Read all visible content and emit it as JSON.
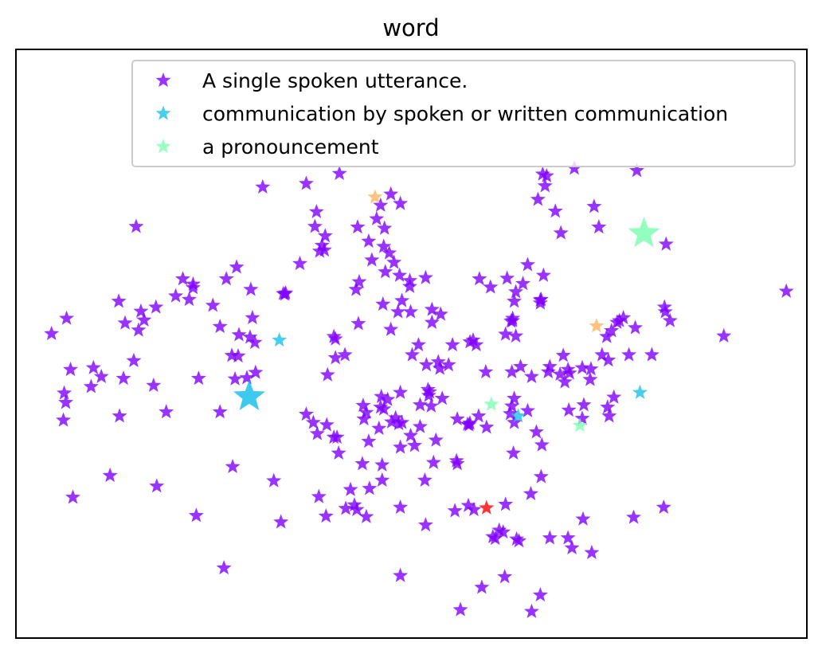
{
  "chart_data": {
    "type": "scatter",
    "title": "word",
    "xlabel": "",
    "ylabel": "",
    "xlim": [
      0,
      100
    ],
    "ylim": [
      0,
      100
    ],
    "axis_ticks": "none",
    "grid": false,
    "marker": "star",
    "legend": {
      "placement": "top-right",
      "entries": [
        {
          "label": "A single spoken utterance.",
          "color": "#8000ff"
        },
        {
          "label": "communication by spoken or written communication",
          "color": "#1cc0eb"
        },
        {
          "label": "a pronouncement",
          "color": "#80ffb3"
        }
      ]
    },
    "series": [
      {
        "name": "A single spoken utterance.",
        "color": "#8000ff",
        "points": [
          [
            31.2,
            76.6
          ],
          [
            36.7,
            77.2
          ],
          [
            15.2,
            69.9
          ],
          [
            27.9,
            63.0
          ],
          [
            38.0,
            72.4
          ],
          [
            37.8,
            69.9
          ],
          [
            34.0,
            58.4
          ],
          [
            33.8,
            58.5
          ],
          [
            40.9,
            78.9
          ],
          [
            43.2,
            69.8
          ],
          [
            46.6,
            69.6
          ],
          [
            45.0,
            64.2
          ],
          [
            43.4,
            60.5
          ],
          [
            45.6,
            71.2
          ],
          [
            44.6,
            67.4
          ],
          [
            48.5,
            61.6
          ],
          [
            46.7,
            62.2
          ],
          [
            48.8,
            57.3
          ],
          [
            51.8,
            61.2
          ],
          [
            49.8,
            59.7
          ],
          [
            46.5,
            66.5
          ],
          [
            39.0,
            65.9
          ],
          [
            38.7,
            66.7
          ],
          [
            38.4,
            65.7
          ],
          [
            39.1,
            68.3
          ],
          [
            47.8,
            63.8
          ],
          [
            47.2,
            65.4
          ],
          [
            43.0,
            59.2
          ],
          [
            47.4,
            75.4
          ],
          [
            46.1,
            73.5
          ],
          [
            48.6,
            73.8
          ],
          [
            49.8,
            60.7
          ],
          [
            52.6,
            55.8
          ],
          [
            53.7,
            55.0
          ],
          [
            55.2,
            49.8
          ],
          [
            57.8,
            50.6
          ],
          [
            58.2,
            49.8
          ],
          [
            57.4,
            50.3
          ],
          [
            57.1,
            36.3
          ],
          [
            55.8,
            37.2
          ],
          [
            58.5,
            37.7
          ],
          [
            60.0,
            59.6
          ],
          [
            58.6,
            61.0
          ],
          [
            62.6,
            53.8
          ],
          [
            63.8,
            46.1
          ],
          [
            62.7,
            45.2
          ],
          [
            65.2,
            44.4
          ],
          [
            69.4,
            43.5
          ],
          [
            74.1,
            48.1
          ],
          [
            78.3,
            52.7
          ],
          [
            68.8,
            44.8
          ],
          [
            70.0,
            45.0
          ],
          [
            69.8,
            45.6
          ],
          [
            71.6,
            45.9
          ],
          [
            67.5,
            46.1
          ],
          [
            67.3,
            45.2
          ],
          [
            69.2,
            48.0
          ],
          [
            74.7,
            51.2
          ],
          [
            76.0,
            53.6
          ],
          [
            66.7,
            61.6
          ],
          [
            66.3,
            57.4
          ],
          [
            66.3,
            56.9
          ],
          [
            66.4,
            57.5
          ],
          [
            64.1,
            60.2
          ],
          [
            63.2,
            51.3
          ],
          [
            62.8,
            54.3
          ],
          [
            63.2,
            58.8
          ],
          [
            64.7,
            63.4
          ],
          [
            62.1,
            61.1
          ],
          [
            63.0,
            57.2
          ],
          [
            62.8,
            53.9
          ],
          [
            66.6,
            78.8
          ],
          [
            67.1,
            78.5
          ],
          [
            66.9,
            76.8
          ],
          [
            66.0,
            74.5
          ],
          [
            70.6,
            79.8
          ],
          [
            73.1,
            73.3
          ],
          [
            73.7,
            69.8
          ],
          [
            78.5,
            79.4
          ],
          [
            82.2,
            66.9
          ],
          [
            82.0,
            56.2
          ],
          [
            82.1,
            55.4
          ],
          [
            82.7,
            53.9
          ],
          [
            80.4,
            48.1
          ],
          [
            89.5,
            51.3
          ],
          [
            97.4,
            58.9
          ],
          [
            77.5,
            48.1
          ],
          [
            76.8,
            54.4
          ],
          [
            76.3,
            53.9
          ],
          [
            75.3,
            52.2
          ],
          [
            74.9,
            47.2
          ],
          [
            72.7,
            45.7
          ],
          [
            68.2,
            72.5
          ],
          [
            68.9,
            68.8
          ],
          [
            72.6,
            43.9
          ],
          [
            75.0,
            37.7
          ],
          [
            74.8,
            39.2
          ],
          [
            75.6,
            40.9
          ],
          [
            71.8,
            39.6
          ],
          [
            69.9,
            38.7
          ],
          [
            71.6,
            37.3
          ],
          [
            62.7,
            39.4
          ],
          [
            62.5,
            38.1
          ],
          [
            64.7,
            38.6
          ],
          [
            61.9,
            51.6
          ],
          [
            63.0,
            40.7
          ],
          [
            62.9,
            31.4
          ],
          [
            66.5,
            32.8
          ],
          [
            65.8,
            35.0
          ],
          [
            66.4,
            27.4
          ],
          [
            65.1,
            24.5
          ],
          [
            61.9,
            22.7
          ],
          [
            60.3,
            17.2
          ],
          [
            61.1,
            18.3
          ],
          [
            61.6,
            18.0
          ],
          [
            60.6,
            16.9
          ],
          [
            63.3,
            16.8
          ],
          [
            63.6,
            16.5
          ],
          [
            67.5,
            17.0
          ],
          [
            69.8,
            17.0
          ],
          [
            70.3,
            15.3
          ],
          [
            72.8,
            14.5
          ],
          [
            66.3,
            7.3
          ],
          [
            65.2,
            4.5
          ],
          [
            61.8,
            10.4
          ],
          [
            58.9,
            8.6
          ],
          [
            56.2,
            4.8
          ],
          [
            71.7,
            20.2
          ],
          [
            78.1,
            20.5
          ],
          [
            81.9,
            22.2
          ],
          [
            57.2,
            22.5
          ],
          [
            57.9,
            21.8
          ],
          [
            55.5,
            21.6
          ],
          [
            51.8,
            19.2
          ],
          [
            48.6,
            10.6
          ],
          [
            48.6,
            22.2
          ],
          [
            51.7,
            26.8
          ],
          [
            52.8,
            29.8
          ],
          [
            53.1,
            33.6
          ],
          [
            48.6,
            32.4
          ],
          [
            46.3,
            29.4
          ],
          [
            46.3,
            26.8
          ],
          [
            49.9,
            34.4
          ],
          [
            51.1,
            35.9
          ],
          [
            52.2,
            41.2
          ],
          [
            53.9,
            40.7
          ],
          [
            48.6,
            41.7
          ],
          [
            48.0,
            37.4
          ],
          [
            47.0,
            40.5
          ],
          [
            44.3,
            38.3
          ],
          [
            44.0,
            37.2
          ],
          [
            43.9,
            39.5
          ],
          [
            46.1,
            39.2
          ],
          [
            48.4,
            36.4
          ],
          [
            48.8,
            36.6
          ],
          [
            47.5,
            36.7
          ],
          [
            45.9,
            35.6
          ],
          [
            44.6,
            33.4
          ],
          [
            50.4,
            32.7
          ],
          [
            55.7,
            30.1
          ],
          [
            55.8,
            29.6
          ],
          [
            57.4,
            36.5
          ],
          [
            57.3,
            36.2
          ],
          [
            59.5,
            35.8
          ],
          [
            63.0,
            36.6
          ],
          [
            59.4,
            45.2
          ],
          [
            43.8,
            29.6
          ],
          [
            40.8,
            31.4
          ],
          [
            40.6,
            34.1
          ],
          [
            39.3,
            36.2
          ],
          [
            42.3,
            25.2
          ],
          [
            44.7,
            25.4
          ],
          [
            42.8,
            22.6
          ],
          [
            43.1,
            21.8
          ],
          [
            44.3,
            20.6
          ],
          [
            41.7,
            22.0
          ],
          [
            39.2,
            20.7
          ],
          [
            38.3,
            24.0
          ],
          [
            33.5,
            19.7
          ],
          [
            32.6,
            26.7
          ],
          [
            27.4,
            29.1
          ],
          [
            26.3,
            11.9
          ],
          [
            22.8,
            20.8
          ],
          [
            17.8,
            25.8
          ],
          [
            11.9,
            27.6
          ],
          [
            7.2,
            23.9
          ],
          [
            6.3,
            40.0
          ],
          [
            6.1,
            41.6
          ],
          [
            6.9,
            45.6
          ],
          [
            9.8,
            45.9
          ],
          [
            10.8,
            44.4
          ],
          [
            9.5,
            42.7
          ],
          [
            13.6,
            44.1
          ],
          [
            17.4,
            42.9
          ],
          [
            14.9,
            47.1
          ],
          [
            15.5,
            52.3
          ],
          [
            16.2,
            54.0
          ],
          [
            17.7,
            56.2
          ],
          [
            20.2,
            58.1
          ],
          [
            21.1,
            61.0
          ],
          [
            22.4,
            59.5
          ],
          [
            21.9,
            57.5
          ],
          [
            24.9,
            56.5
          ],
          [
            26.6,
            61.0
          ],
          [
            25.8,
            52.9
          ],
          [
            29.9,
            54.4
          ],
          [
            28.2,
            51.5
          ],
          [
            27.3,
            48.0
          ],
          [
            27.7,
            44.0
          ],
          [
            29.2,
            44.2
          ],
          [
            25.8,
            38.4
          ],
          [
            23.1,
            44.1
          ],
          [
            29.6,
            51.1
          ],
          [
            30.2,
            50.2
          ],
          [
            28.1,
            47.9
          ],
          [
            30.3,
            45.1
          ],
          [
            19.0,
            38.4
          ],
          [
            13.1,
            37.7
          ],
          [
            6.0,
            37.0
          ],
          [
            4.5,
            51.7
          ],
          [
            6.4,
            54.3
          ],
          [
            13.0,
            57.2
          ],
          [
            13.8,
            53.5
          ],
          [
            15.8,
            55.5
          ],
          [
            22.4,
            60.1
          ],
          [
            29.7,
            59.2
          ],
          [
            34.1,
            58.6
          ],
          [
            35.9,
            63.6
          ],
          [
            40.4,
            50.8
          ],
          [
            41.6,
            48.1
          ],
          [
            40.2,
            51.2
          ],
          [
            40.4,
            47.6
          ],
          [
            39.4,
            44.7
          ],
          [
            37.6,
            36.6
          ],
          [
            38.1,
            34.7
          ],
          [
            36.7,
            38.0
          ],
          [
            40.2,
            34.1
          ],
          [
            46.2,
            41.0
          ],
          [
            43.3,
            53.4
          ],
          [
            47.4,
            52.4
          ],
          [
            50.9,
            49.8
          ],
          [
            48.3,
            55.4
          ],
          [
            49.9,
            55.4
          ],
          [
            46.4,
            56.7
          ],
          [
            50.1,
            48.1
          ],
          [
            51.9,
            46.4
          ],
          [
            53.4,
            46.9
          ],
          [
            53.6,
            45.8
          ],
          [
            54.7,
            46.4
          ],
          [
            52.1,
            42.2
          ],
          [
            52.3,
            41.8
          ],
          [
            52.5,
            39.4
          ],
          [
            51.1,
            39.6
          ],
          [
            46.5,
            38.9
          ],
          [
            52.6,
            53.6
          ]
        ]
      },
      {
        "name": "communication by spoken or written communication",
        "color": "#1cc0eb",
        "points": [
          [
            33.3,
            50.6
          ],
          [
            78.9,
            41.7
          ],
          [
            63.5,
            37.7
          ],
          [
            29.5,
            41.0
          ]
        ]
      },
      {
        "name": "a pronouncement",
        "color": "#80ffb3",
        "points": [
          [
            79.4,
            68.7
          ],
          [
            60.1,
            39.7
          ],
          [
            71.3,
            36.1
          ]
        ]
      },
      {
        "name": "",
        "color": "#ffb360",
        "points": [
          [
            45.4,
            74.9
          ],
          [
            73.4,
            53.0
          ]
        ]
      },
      {
        "name": "",
        "color": "#ff0000",
        "points": [
          [
            59.5,
            22.1
          ]
        ]
      }
    ],
    "highlighted_points": [
      {
        "color": "#1cc0eb",
        "point": [
          29.5,
          41.0
        ]
      },
      {
        "color": "#80ffb3",
        "point": [
          79.4,
          68.7
        ]
      }
    ]
  }
}
